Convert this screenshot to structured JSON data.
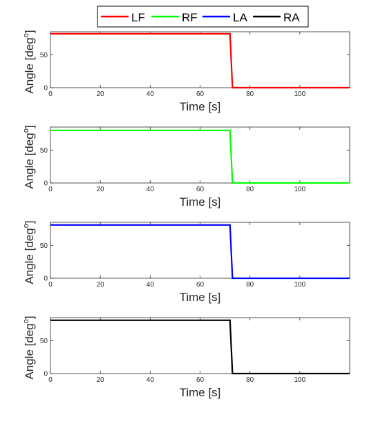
{
  "legend": [
    {
      "label": "LF",
      "color": "#ff0000"
    },
    {
      "label": "RF",
      "color": "#00ff00"
    },
    {
      "label": "LA",
      "color": "#0000ff"
    },
    {
      "label": "RA",
      "color": "#000000"
    }
  ],
  "chart_data": [
    {
      "type": "line",
      "xlabel": "Time [s]",
      "ylabel": "Angle [deg",
      "ylabel_superscript": "o",
      "xlim": [
        0,
        120
      ],
      "ylim": [
        0,
        85
      ],
      "xticks": [
        0,
        20,
        40,
        60,
        80,
        100
      ],
      "yticks": [
        0,
        50
      ],
      "grid": false,
      "series": [
        {
          "name": "LF",
          "color": "#ff0000",
          "x": [
            0,
            72,
            73,
            120
          ],
          "y": [
            82,
            82,
            0,
            0
          ]
        }
      ]
    },
    {
      "type": "line",
      "xlabel": "Time [s]",
      "ylabel": "Angle [deg",
      "ylabel_superscript": "o",
      "xlim": [
        0,
        120
      ],
      "ylim": [
        0,
        85
      ],
      "xticks": [
        0,
        20,
        40,
        60,
        80,
        100
      ],
      "yticks": [
        0,
        50
      ],
      "grid": false,
      "series": [
        {
          "name": "RF",
          "color": "#00ff00",
          "x": [
            0,
            72,
            73,
            120
          ],
          "y": [
            80,
            80,
            0,
            0
          ]
        }
      ]
    },
    {
      "type": "line",
      "xlabel": "Time [s]",
      "ylabel": "Angle [deg",
      "ylabel_superscript": "o",
      "xlim": [
        0,
        120
      ],
      "ylim": [
        0,
        85
      ],
      "xticks": [
        0,
        20,
        40,
        60,
        80,
        100
      ],
      "yticks": [
        0,
        50
      ],
      "grid": false,
      "series": [
        {
          "name": "LA",
          "color": "#0000ff",
          "x": [
            0,
            72,
            73,
            120
          ],
          "y": [
            81,
            81,
            0,
            0
          ]
        }
      ]
    },
    {
      "type": "line",
      "xlabel": "Time [s]",
      "ylabel": "Angle [deg",
      "ylabel_superscript": "o",
      "xlim": [
        0,
        120
      ],
      "ylim": [
        0,
        85
      ],
      "xticks": [
        0,
        20,
        40,
        60,
        80,
        100
      ],
      "yticks": [
        0,
        50
      ],
      "grid": false,
      "series": [
        {
          "name": "RA",
          "color": "#000000",
          "x": [
            0,
            72,
            73,
            120
          ],
          "y": [
            81,
            81,
            0,
            0
          ]
        }
      ]
    }
  ]
}
